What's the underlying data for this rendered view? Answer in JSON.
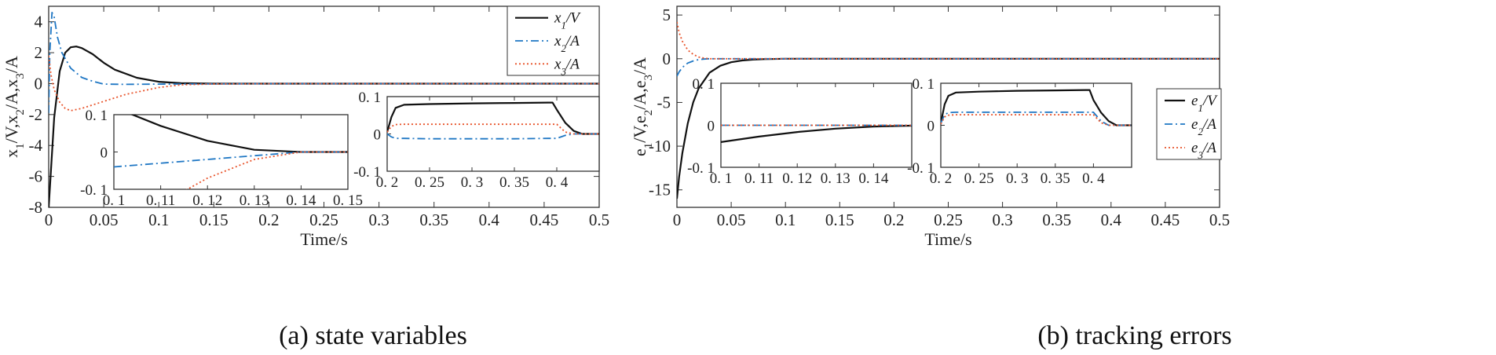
{
  "captions": {
    "a": "(a) state variables",
    "b": "(b) tracking errors"
  },
  "chart_data": [
    {
      "id": "a",
      "type": "line",
      "xlabel": "Time/s",
      "ylabel": "x1/V,x2/A,x3/A",
      "xlim": [
        0,
        0.5
      ],
      "ylim": [
        -8,
        5
      ],
      "xticks": [
        "0",
        "0.05",
        "0.1",
        "0.15",
        "0.2",
        "0.25",
        "0.3",
        "0.35",
        "0.4",
        "0.45",
        "0.5"
      ],
      "yticks": [
        "-8",
        "-6",
        "-4",
        "-2",
        "0",
        "2",
        "4"
      ],
      "legend": [
        "x1/V",
        "x2/A",
        "x3/A"
      ],
      "colors": [
        "#111111",
        "#1f77c4",
        "#e8532a"
      ],
      "series": [
        {
          "name": "x1/V",
          "x": [
            0,
            0.005,
            0.01,
            0.015,
            0.02,
            0.025,
            0.03,
            0.04,
            0.05,
            0.06,
            0.08,
            0.1,
            0.12,
            0.15,
            0.2,
            0.3,
            0.4,
            0.5
          ],
          "y": [
            -8,
            -2.2,
            0.8,
            2.0,
            2.35,
            2.4,
            2.3,
            1.9,
            1.35,
            0.9,
            0.38,
            0.12,
            0.03,
            0,
            0,
            0,
            0,
            0
          ]
        },
        {
          "name": "x2/A",
          "x": [
            0,
            0.001,
            0.003,
            0.005,
            0.008,
            0.012,
            0.02,
            0.03,
            0.04,
            0.05,
            0.07,
            0.1,
            0.2,
            0.3,
            0.4,
            0.5
          ],
          "y": [
            -1.9,
            2.0,
            4.6,
            4.3,
            3.0,
            2.0,
            1.0,
            0.4,
            0.15,
            -0.03,
            -0.05,
            -0.03,
            0,
            0,
            0,
            0
          ]
        },
        {
          "name": "x3/A",
          "x": [
            0,
            0.002,
            0.005,
            0.01,
            0.015,
            0.02,
            0.03,
            0.05,
            0.07,
            0.1,
            0.12,
            0.15,
            0.2,
            0.3,
            0.4,
            0.5
          ],
          "y": [
            1.8,
            0.6,
            -0.4,
            -1.2,
            -1.6,
            -1.75,
            -1.6,
            -1.15,
            -0.7,
            -0.25,
            -0.08,
            -0.02,
            0,
            0,
            0,
            0
          ]
        }
      ],
      "insets": [
        {
          "xlim": [
            0.1,
            0.15
          ],
          "ylim": [
            -0.1,
            0.1
          ],
          "xticks": [
            "0.1",
            "0.11",
            "0.12",
            "0.13",
            "0.14",
            "0.15"
          ],
          "yticks": [
            "-0.1",
            "0",
            "0.1"
          ],
          "series": [
            {
              "name": "x1/V",
              "x": [
                0.1,
                0.11,
                0.12,
                0.13,
                0.14,
                0.15
              ],
              "y": [
                0.12,
                0.07,
                0.03,
                0.006,
                0,
                0
              ]
            },
            {
              "name": "x2/A",
              "x": [
                0.1,
                0.12,
                0.14,
                0.15
              ],
              "y": [
                -0.04,
                -0.02,
                0,
                0
              ]
            },
            {
              "name": "x3/A",
              "x": [
                0.1,
                0.11,
                0.12,
                0.13,
                0.14,
                0.15
              ],
              "y": [
                -0.23,
                -0.14,
                -0.07,
                -0.02,
                0,
                0
              ]
            }
          ]
        },
        {
          "xlim": [
            0.2,
            0.45
          ],
          "ylim": [
            -0.1,
            0.1
          ],
          "xticks": [
            "0.2",
            "0.25",
            "0.3",
            "0.35",
            "0.4"
          ],
          "yticks": [
            "-0.1",
            "0",
            "0.1"
          ],
          "series": [
            {
              "name": "x1/V",
              "x": [
                0.2,
                0.205,
                0.21,
                0.22,
                0.25,
                0.3,
                0.35,
                0.39,
                0.395,
                0.4,
                0.41,
                0.42,
                0.43,
                0.45
              ],
              "y": [
                0.005,
                0.045,
                0.07,
                0.078,
                0.08,
                0.082,
                0.083,
                0.084,
                0.084,
                0.065,
                0.03,
                0.008,
                0,
                0
              ]
            },
            {
              "name": "x2/A",
              "x": [
                0.2,
                0.205,
                0.21,
                0.22,
                0.25,
                0.3,
                0.35,
                0.39,
                0.4,
                0.41,
                0.42,
                0.45
              ],
              "y": [
                0,
                -0.008,
                -0.012,
                -0.012,
                -0.013,
                -0.013,
                -0.013,
                -0.012,
                -0.012,
                -0.004,
                0,
                0
              ]
            },
            {
              "name": "x3/A",
              "x": [
                0.2,
                0.205,
                0.21,
                0.22,
                0.25,
                0.3,
                0.35,
                0.39,
                0.4,
                0.41,
                0.42,
                0.45
              ],
              "y": [
                0.005,
                0.02,
                0.025,
                0.026,
                0.026,
                0.026,
                0.026,
                0.026,
                0.026,
                0.005,
                0,
                0
              ]
            }
          ]
        }
      ]
    },
    {
      "id": "b",
      "type": "line",
      "xlabel": "Time/s",
      "ylabel": "e1/V,e2/A,e3/A",
      "xlim": [
        0,
        0.5
      ],
      "ylim": [
        -17,
        6
      ],
      "xticks": [
        "0",
        "0.05",
        "0.1",
        "0.15",
        "0.2",
        "0.25",
        "0.3",
        "0.35",
        "0.4",
        "0.45",
        "0.5"
      ],
      "yticks": [
        "-15",
        "-10",
        "-5",
        "0",
        "5"
      ],
      "legend": [
        "e1/V",
        "e2/A",
        "e3/A"
      ],
      "colors": [
        "#111111",
        "#1f77c4",
        "#e8532a"
      ],
      "series": [
        {
          "name": "e1/V",
          "x": [
            0,
            0.002,
            0.005,
            0.01,
            0.015,
            0.02,
            0.03,
            0.04,
            0.05,
            0.06,
            0.07,
            0.08,
            0.1,
            0.15,
            0.2,
            0.3,
            0.4,
            0.5
          ],
          "y": [
            -16,
            -13.5,
            -10.8,
            -7.4,
            -5.0,
            -3.4,
            -1.6,
            -0.8,
            -0.4,
            -0.2,
            -0.1,
            -0.05,
            0,
            0,
            0,
            0,
            0,
            0
          ]
        },
        {
          "name": "e2/A",
          "x": [
            0,
            0.002,
            0.005,
            0.01,
            0.015,
            0.02,
            0.025,
            0.03,
            0.05,
            0.1,
            0.2,
            0.3,
            0.4,
            0.5
          ],
          "y": [
            -2,
            -1.5,
            -1.0,
            -0.5,
            -0.25,
            -0.1,
            -0.04,
            0,
            0,
            0,
            0,
            0,
            0,
            0
          ]
        },
        {
          "name": "e3/A",
          "x": [
            0,
            0.002,
            0.005,
            0.01,
            0.015,
            0.02,
            0.025,
            0.03,
            0.05,
            0.1,
            0.2,
            0.3,
            0.4,
            0.5
          ],
          "y": [
            4.2,
            3.0,
            2.0,
            1.0,
            0.5,
            0.2,
            0.07,
            0,
            0,
            0,
            0,
            0,
            0,
            0
          ]
        }
      ],
      "insets": [
        {
          "xlim": [
            0.1,
            0.15
          ],
          "ylim": [
            -0.1,
            0.1
          ],
          "xticks": [
            "0.1",
            "0.11",
            "0.12",
            "0.13",
            "0.14"
          ],
          "yticks": [
            "-0.1",
            "0",
            "0.1"
          ],
          "series": [
            {
              "name": "e1/V",
              "x": [
                0.1,
                0.11,
                0.12,
                0.13,
                0.14,
                0.15
              ],
              "y": [
                -0.04,
                -0.027,
                -0.016,
                -0.008,
                -0.003,
                -0.001
              ]
            },
            {
              "name": "e2/A",
              "x": [
                0.1,
                0.15
              ],
              "y": [
                0,
                0
              ]
            },
            {
              "name": "e3/A",
              "x": [
                0.1,
                0.15
              ],
              "y": [
                0,
                0
              ]
            }
          ]
        },
        {
          "xlim": [
            0.2,
            0.45
          ],
          "ylim": [
            -0.1,
            0.1
          ],
          "xticks": [
            "0.2",
            "0.25",
            "0.3",
            "0.35",
            "0.4"
          ],
          "yticks": [
            "-0.1",
            "0",
            "0.1"
          ],
          "series": [
            {
              "name": "e1/V",
              "x": [
                0.2,
                0.205,
                0.21,
                0.22,
                0.25,
                0.3,
                0.35,
                0.39,
                0.395,
                0.4,
                0.41,
                0.42,
                0.43,
                0.45
              ],
              "y": [
                0.005,
                0.05,
                0.07,
                0.078,
                0.08,
                0.082,
                0.083,
                0.084,
                0.084,
                0.06,
                0.03,
                0.01,
                0,
                0
              ]
            },
            {
              "name": "e2/A",
              "x": [
                0.2,
                0.205,
                0.21,
                0.22,
                0.25,
                0.3,
                0.35,
                0.39,
                0.4,
                0.41,
                0.42,
                0.45
              ],
              "y": [
                0.005,
                0.025,
                0.03,
                0.031,
                0.031,
                0.031,
                0.031,
                0.031,
                0.031,
                0.01,
                0,
                0
              ]
            },
            {
              "name": "e3/A",
              "x": [
                0.2,
                0.205,
                0.21,
                0.22,
                0.25,
                0.3,
                0.35,
                0.39,
                0.4,
                0.41,
                0.42,
                0.45
              ],
              "y": [
                0.003,
                0.02,
                0.024,
                0.025,
                0.025,
                0.025,
                0.025,
                0.025,
                0.025,
                0.006,
                0,
                0
              ]
            }
          ]
        }
      ]
    }
  ]
}
